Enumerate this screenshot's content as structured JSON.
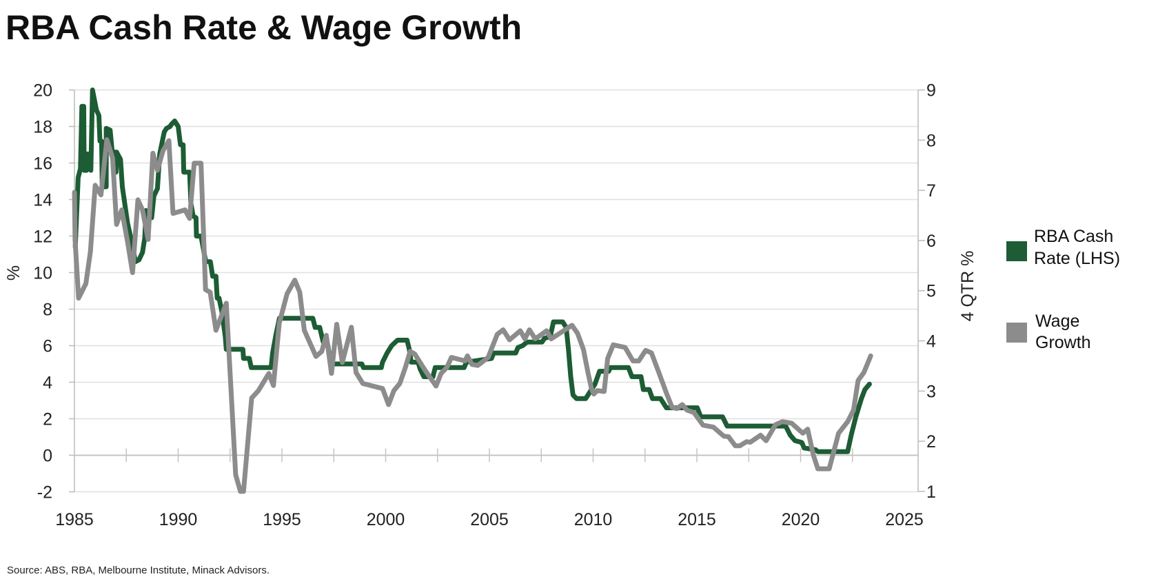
{
  "chart_data": {
    "type": "line",
    "title": "RBA Cash Rate & Wage Growth",
    "source": "Source: ABS, RBA, Melbourne Institute, Minack Advisors.",
    "xlabel": "",
    "ylabel_left": "%",
    "ylabel_right": "4 QTR %",
    "xlim": [
      1985,
      2025
    ],
    "ylim_left": [
      -2,
      20
    ],
    "ylim_right": [
      1,
      9
    ],
    "x_ticks": [
      "1985",
      "1990",
      "1995",
      "2000",
      "2005",
      "2010",
      "2015",
      "2020",
      "2025"
    ],
    "y_ticks_left": [
      "20",
      "18",
      "16",
      "14",
      "12",
      "10",
      "8",
      "6",
      "4",
      "2",
      "0",
      "-2"
    ],
    "y_ticks_right": [
      "9",
      "8",
      "7",
      "6",
      "5",
      "4",
      "3",
      "2",
      "1"
    ],
    "grid": true,
    "legend_position": "right",
    "series": [
      {
        "name": "RBA Cash Rate (LHS)",
        "axis": "left",
        "color": "#1d5c34",
        "points": [
          [
            1985.04,
            11.4
          ],
          [
            1985.18,
            15.2
          ],
          [
            1985.29,
            15.7
          ],
          [
            1985.36,
            19.1
          ],
          [
            1985.45,
            19.1
          ],
          [
            1985.47,
            15.6
          ],
          [
            1985.58,
            15.6
          ],
          [
            1985.62,
            16.5
          ],
          [
            1985.7,
            16.1
          ],
          [
            1985.79,
            15.6
          ],
          [
            1985.87,
            20.0
          ],
          [
            1986.06,
            18.9
          ],
          [
            1986.18,
            18.6
          ],
          [
            1986.23,
            17.2
          ],
          [
            1986.31,
            17.2
          ],
          [
            1986.34,
            14.7
          ],
          [
            1986.53,
            14.7
          ],
          [
            1986.53,
            17.9
          ],
          [
            1986.72,
            17.8
          ],
          [
            1986.83,
            16.5
          ],
          [
            1986.94,
            16.6
          ],
          [
            1987.0,
            15.5
          ],
          [
            1987.03,
            16.6
          ],
          [
            1987.22,
            16.2
          ],
          [
            1987.31,
            14.7
          ],
          [
            1987.56,
            12.7
          ],
          [
            1987.72,
            11.9
          ],
          [
            1987.94,
            10.6
          ],
          [
            1988.11,
            10.7
          ],
          [
            1988.28,
            11.1
          ],
          [
            1988.39,
            11.9
          ],
          [
            1988.45,
            13.4
          ],
          [
            1988.72,
            13.0
          ],
          [
            1988.83,
            14.2
          ],
          [
            1989.0,
            14.6
          ],
          [
            1989.11,
            16.5
          ],
          [
            1989.33,
            17.7
          ],
          [
            1989.44,
            17.9
          ],
          [
            1989.61,
            18.0
          ],
          [
            1989.66,
            18.1
          ],
          [
            1989.83,
            18.3
          ],
          [
            1990.0,
            18.0
          ],
          [
            1990.11,
            17.0
          ],
          [
            1990.24,
            17.0
          ],
          [
            1990.27,
            15.5
          ],
          [
            1990.55,
            15.5
          ],
          [
            1990.61,
            13.8
          ],
          [
            1990.72,
            13.1
          ],
          [
            1990.86,
            13.0
          ],
          [
            1990.88,
            12.0
          ],
          [
            1991.1,
            12.0
          ],
          [
            1991.33,
            10.6
          ],
          [
            1991.55,
            10.6
          ],
          [
            1991.66,
            9.8
          ],
          [
            1991.82,
            9.8
          ],
          [
            1991.88,
            8.6
          ],
          [
            1991.97,
            8.6
          ],
          [
            1992.1,
            7.9
          ],
          [
            1992.27,
            6.5
          ],
          [
            1992.32,
            5.8
          ],
          [
            1993.12,
            5.8
          ],
          [
            1993.15,
            5.3
          ],
          [
            1993.43,
            5.3
          ],
          [
            1993.52,
            4.8
          ],
          [
            1994.48,
            4.8
          ],
          [
            1994.55,
            5.6
          ],
          [
            1994.71,
            6.6
          ],
          [
            1994.88,
            7.5
          ],
          [
            1996.49,
            7.5
          ],
          [
            1996.6,
            7.0
          ],
          [
            1996.82,
            7.0
          ],
          [
            1996.99,
            6.2
          ],
          [
            1997.2,
            6.1
          ],
          [
            1997.36,
            5.0
          ],
          [
            1998.85,
            5.0
          ],
          [
            1998.93,
            4.8
          ],
          [
            1999.79,
            4.8
          ],
          [
            1999.85,
            5.1
          ],
          [
            2000.07,
            5.6
          ],
          [
            2000.29,
            6.0
          ],
          [
            2000.57,
            6.3
          ],
          [
            2001.03,
            6.3
          ],
          [
            2001.14,
            5.8
          ],
          [
            2001.23,
            5.1
          ],
          [
            2001.56,
            5.1
          ],
          [
            2001.67,
            4.7
          ],
          [
            2001.84,
            4.3
          ],
          [
            2002.28,
            4.3
          ],
          [
            2002.39,
            4.8
          ],
          [
            2003.78,
            4.8
          ],
          [
            2003.89,
            5.1
          ],
          [
            2005.1,
            5.3
          ],
          [
            2005.21,
            5.6
          ],
          [
            2006.27,
            5.6
          ],
          [
            2006.38,
            5.9
          ],
          [
            2006.6,
            6.0
          ],
          [
            2006.82,
            6.2
          ],
          [
            2007.54,
            6.2
          ],
          [
            2007.65,
            6.4
          ],
          [
            2007.93,
            6.5
          ],
          [
            2008.09,
            7.3
          ],
          [
            2008.53,
            7.3
          ],
          [
            2008.7,
            7.0
          ],
          [
            2008.81,
            5.8
          ],
          [
            2008.92,
            4.3
          ],
          [
            2009.03,
            3.3
          ],
          [
            2009.2,
            3.1
          ],
          [
            2009.64,
            3.1
          ],
          [
            2010.09,
            3.9
          ],
          [
            2010.31,
            4.6
          ],
          [
            2010.75,
            4.6
          ],
          [
            2010.82,
            4.8
          ],
          [
            2011.7,
            4.8
          ],
          [
            2011.87,
            4.3
          ],
          [
            2012.31,
            4.3
          ],
          [
            2012.42,
            3.6
          ],
          [
            2012.7,
            3.6
          ],
          [
            2012.86,
            3.1
          ],
          [
            2013.25,
            3.1
          ],
          [
            2013.53,
            2.6
          ],
          [
            2015.02,
            2.6
          ],
          [
            2015.19,
            2.1
          ],
          [
            2016.24,
            2.1
          ],
          [
            2016.46,
            1.6
          ],
          [
            2019.28,
            1.6
          ],
          [
            2019.5,
            1.1
          ],
          [
            2019.73,
            0.8
          ],
          [
            2020.06,
            0.7
          ],
          [
            2020.17,
            0.4
          ],
          [
            2020.72,
            0.3
          ],
          [
            2020.83,
            0.2
          ],
          [
            2022.27,
            0.2
          ],
          [
            2022.44,
            1.1
          ],
          [
            2022.66,
            2.1
          ],
          [
            2022.93,
            3.1
          ],
          [
            2023.1,
            3.6
          ],
          [
            2023.32,
            3.9
          ]
        ]
      },
      {
        "name": "Wage Growth",
        "axis": "right",
        "color": "#8c8c8c",
        "points": [
          [
            1985.0,
            6.96
          ],
          [
            1985.03,
            6.02
          ],
          [
            1985.2,
            4.85
          ],
          [
            1985.55,
            5.14
          ],
          [
            1985.77,
            5.78
          ],
          [
            1986.0,
            7.1
          ],
          [
            1986.28,
            6.91
          ],
          [
            1986.56,
            8.01
          ],
          [
            1986.84,
            7.64
          ],
          [
            1987.03,
            6.32
          ],
          [
            1987.28,
            6.61
          ],
          [
            1987.56,
            5.97
          ],
          [
            1987.8,
            5.36
          ],
          [
            1988.06,
            6.81
          ],
          [
            1988.28,
            6.61
          ],
          [
            1988.55,
            6.02
          ],
          [
            1988.78,
            7.74
          ],
          [
            1989.0,
            7.4
          ],
          [
            1989.27,
            7.79
          ],
          [
            1989.55,
            7.99
          ],
          [
            1989.75,
            6.54
          ],
          [
            1990.33,
            6.61
          ],
          [
            1990.55,
            6.44
          ],
          [
            1990.77,
            7.54
          ],
          [
            1991.1,
            7.54
          ],
          [
            1991.32,
            5.02
          ],
          [
            1991.54,
            4.97
          ],
          [
            1991.82,
            4.21
          ],
          [
            1992.32,
            4.75
          ],
          [
            1992.77,
            1.33
          ],
          [
            1993.0,
            1.0
          ],
          [
            1993.15,
            1.0
          ],
          [
            1993.54,
            2.86
          ],
          [
            1993.87,
            3.01
          ],
          [
            1994.37,
            3.35
          ],
          [
            1994.59,
            3.11
          ],
          [
            1994.87,
            4.35
          ],
          [
            1995.25,
            4.94
          ],
          [
            1995.62,
            5.21
          ],
          [
            1995.86,
            4.97
          ],
          [
            1996.08,
            4.21
          ],
          [
            1996.64,
            3.69
          ],
          [
            1996.92,
            3.79
          ],
          [
            1997.14,
            4.11
          ],
          [
            1997.39,
            3.35
          ],
          [
            1997.64,
            4.33
          ],
          [
            1997.91,
            3.57
          ],
          [
            1998.35,
            4.27
          ],
          [
            1998.57,
            3.37
          ],
          [
            1998.9,
            3.15
          ],
          [
            1999.85,
            3.05
          ],
          [
            2000.14,
            2.73
          ],
          [
            2000.4,
            3.01
          ],
          [
            2000.68,
            3.15
          ],
          [
            2000.95,
            3.47
          ],
          [
            2001.18,
            3.79
          ],
          [
            2001.4,
            3.74
          ],
          [
            2001.89,
            3.42
          ],
          [
            2002.43,
            3.1
          ],
          [
            2002.67,
            3.35
          ],
          [
            2002.95,
            3.47
          ],
          [
            2003.17,
            3.67
          ],
          [
            2003.83,
            3.6
          ],
          [
            2003.94,
            3.7
          ],
          [
            2004.16,
            3.53
          ],
          [
            2004.44,
            3.51
          ],
          [
            2004.94,
            3.67
          ],
          [
            2005.38,
            4.13
          ],
          [
            2005.66,
            4.22
          ],
          [
            2005.97,
            4.02
          ],
          [
            2006.49,
            4.2
          ],
          [
            2006.71,
            4.04
          ],
          [
            2006.93,
            4.22
          ],
          [
            2007.21,
            4.04
          ],
          [
            2007.76,
            4.2
          ],
          [
            2007.98,
            4.04
          ],
          [
            2008.98,
            4.31
          ],
          [
            2009.25,
            4.15
          ],
          [
            2009.53,
            3.83
          ],
          [
            2009.75,
            3.37
          ],
          [
            2009.92,
            3.05
          ],
          [
            2010.03,
            2.94
          ],
          [
            2010.2,
            3.01
          ],
          [
            2010.53,
            2.99
          ],
          [
            2010.7,
            3.65
          ],
          [
            2010.97,
            3.92
          ],
          [
            2011.54,
            3.87
          ],
          [
            2011.92,
            3.6
          ],
          [
            2012.2,
            3.6
          ],
          [
            2012.53,
            3.81
          ],
          [
            2012.81,
            3.76
          ],
          [
            2013.14,
            3.4
          ],
          [
            2013.53,
            2.96
          ],
          [
            2013.8,
            2.68
          ],
          [
            2014.03,
            2.65
          ],
          [
            2014.3,
            2.73
          ],
          [
            2014.52,
            2.62
          ],
          [
            2014.86,
            2.57
          ],
          [
            2015.3,
            2.32
          ],
          [
            2015.8,
            2.28
          ],
          [
            2016.3,
            2.1
          ],
          [
            2016.52,
            2.09
          ],
          [
            2016.85,
            1.91
          ],
          [
            2017.07,
            1.91
          ],
          [
            2017.4,
            1.99
          ],
          [
            2017.57,
            1.98
          ],
          [
            2018.07,
            2.12
          ],
          [
            2018.34,
            2.01
          ],
          [
            2018.79,
            2.33
          ],
          [
            2019.12,
            2.39
          ],
          [
            2019.56,
            2.36
          ],
          [
            2020.11,
            2.16
          ],
          [
            2020.34,
            2.24
          ],
          [
            2020.61,
            1.73
          ],
          [
            2020.83,
            1.45
          ],
          [
            2021.38,
            1.45
          ],
          [
            2021.83,
            2.16
          ],
          [
            2022.27,
            2.39
          ],
          [
            2022.55,
            2.62
          ],
          [
            2022.77,
            3.21
          ],
          [
            2023.05,
            3.37
          ],
          [
            2023.38,
            3.7
          ]
        ]
      }
    ]
  }
}
